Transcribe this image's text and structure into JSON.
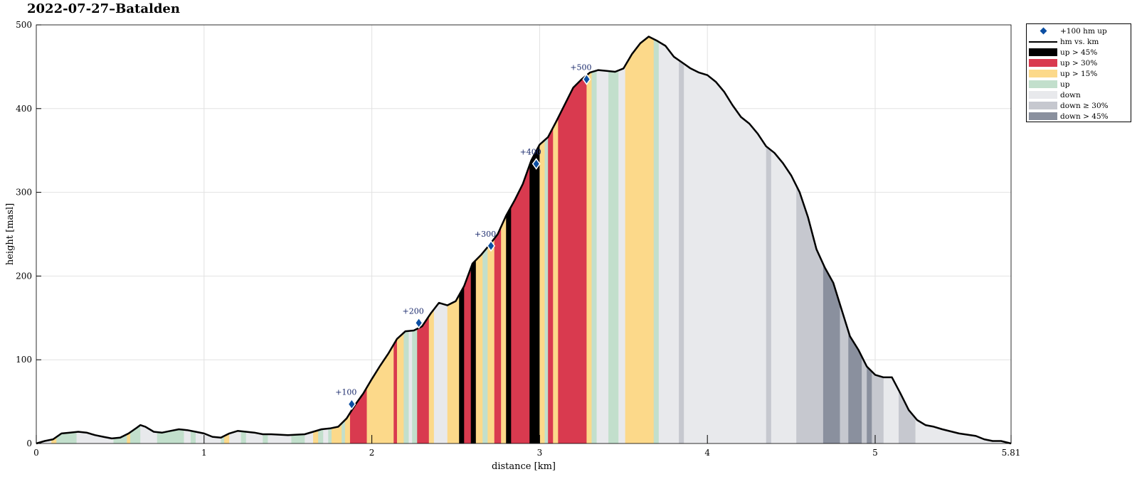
{
  "chart_data": {
    "type": "area",
    "title": "2022-07-27–Batalden",
    "xlabel": "distance [km]",
    "ylabel": "height [masl]",
    "xlim": [
      0,
      5.81
    ],
    "ylim": [
      0,
      500
    ],
    "xticks": [
      "0",
      "1",
      "2",
      "3",
      "4",
      "5",
      "5.81"
    ],
    "xtick_values": [
      0,
      1,
      2,
      3,
      4,
      5,
      5.81
    ],
    "yticks": [
      0,
      100,
      200,
      300,
      400,
      500
    ],
    "grid": true,
    "legend_position": "outside-top-right",
    "colors": {
      "up_gt_45": "#000000",
      "up_gt_30": "#d93a4f",
      "up_gt_15": "#fcd98a",
      "up": "#c2dfcc",
      "down": "#e8e9ec",
      "down_ge_30": "#c6c8cf",
      "down_gt_45": "#8a909e",
      "marker": "#0b4ea2",
      "line": "#000000"
    },
    "legend": [
      {
        "label": "+100 hm up",
        "kind": "diamond",
        "color": "#0b4ea2"
      },
      {
        "label": "hm vs. km",
        "kind": "line",
        "color": "#000000"
      },
      {
        "label": "up > 45%",
        "kind": "box",
        "color": "#000000"
      },
      {
        "label": "up > 30%",
        "kind": "box",
        "color": "#d93a4f"
      },
      {
        "label": "up > 15%",
        "kind": "box",
        "color": "#fcd98a"
      },
      {
        "label": "up",
        "kind": "box",
        "color": "#c2dfcc"
      },
      {
        "label": "down",
        "kind": "box",
        "color": "#e8e9ec"
      },
      {
        "label": "down ≥ 30%",
        "kind": "box",
        "color": "#c6c8cf"
      },
      {
        "label": "down > 45%",
        "kind": "box",
        "color": "#8a909e"
      }
    ],
    "profile": {
      "x": [
        0,
        0.05,
        0.1,
        0.15,
        0.2,
        0.25,
        0.3,
        0.35,
        0.4,
        0.45,
        0.5,
        0.55,
        0.6,
        0.62,
        0.65,
        0.7,
        0.75,
        0.8,
        0.85,
        0.9,
        0.95,
        1.0,
        1.05,
        1.1,
        1.15,
        1.2,
        1.25,
        1.3,
        1.35,
        1.4,
        1.5,
        1.6,
        1.65,
        1.7,
        1.75,
        1.8,
        1.85,
        1.9,
        1.95,
        2.0,
        2.05,
        2.1,
        2.15,
        2.2,
        2.25,
        2.3,
        2.35,
        2.4,
        2.45,
        2.5,
        2.55,
        2.6,
        2.65,
        2.7,
        2.75,
        2.8,
        2.85,
        2.9,
        2.95,
        3.0,
        3.05,
        3.1,
        3.15,
        3.2,
        3.25,
        3.3,
        3.35,
        3.4,
        3.45,
        3.5,
        3.55,
        3.6,
        3.65,
        3.7,
        3.75,
        3.8,
        3.85,
        3.9,
        3.95,
        4.0,
        4.05,
        4.1,
        4.15,
        4.2,
        4.25,
        4.3,
        4.35,
        4.4,
        4.45,
        4.5,
        4.55,
        4.6,
        4.65,
        4.7,
        4.75,
        4.8,
        4.85,
        4.9,
        4.95,
        5.0,
        5.05,
        5.1,
        5.15,
        5.2,
        5.25,
        5.3,
        5.35,
        5.4,
        5.5,
        5.6,
        5.65,
        5.7,
        5.75,
        5.81
      ],
      "y": [
        0,
        3,
        5,
        12,
        13,
        14,
        13,
        10,
        8,
        6,
        7,
        12,
        19,
        22,
        20,
        14,
        13,
        15,
        17,
        16,
        14,
        12,
        8,
        7,
        12,
        15,
        14,
        13,
        11,
        11,
        10,
        11,
        14,
        17,
        18,
        20,
        30,
        46,
        60,
        77,
        93,
        108,
        125,
        134,
        135,
        140,
        155,
        168,
        165,
        170,
        188,
        215,
        225,
        237,
        250,
        272,
        290,
        310,
        338,
        357,
        366,
        385,
        405,
        425,
        435,
        443,
        446,
        445,
        444,
        448,
        465,
        478,
        486,
        481,
        475,
        462,
        455,
        448,
        443,
        440,
        432,
        420,
        404,
        390,
        382,
        370,
        355,
        347,
        335,
        320,
        300,
        270,
        232,
        210,
        192,
        160,
        128,
        112,
        92,
        82,
        79,
        79,
        60,
        40,
        28,
        22,
        20,
        17,
        12,
        9,
        5,
        3,
        3,
        0
      ]
    },
    "markers": [
      {
        "label": "+100",
        "x": 1.88,
        "y": 47
      },
      {
        "label": "+200",
        "x": 2.28,
        "y": 144
      },
      {
        "label": "+300",
        "x": 2.71,
        "y": 236
      },
      {
        "label": "+400",
        "x": 2.98,
        "y": 334
      },
      {
        "label": "+500",
        "x": 3.28,
        "y": 435
      }
    ],
    "segments": [
      {
        "x0": 0.0,
        "x1": 0.09,
        "cat": "down"
      },
      {
        "x0": 0.09,
        "x1": 0.12,
        "cat": "up_gt_15"
      },
      {
        "x0": 0.12,
        "x1": 0.24,
        "cat": "up"
      },
      {
        "x0": 0.24,
        "x1": 0.46,
        "cat": "down"
      },
      {
        "x0": 0.46,
        "x1": 0.54,
        "cat": "up"
      },
      {
        "x0": 0.54,
        "x1": 0.56,
        "cat": "up_gt_15"
      },
      {
        "x0": 0.56,
        "x1": 0.62,
        "cat": "up"
      },
      {
        "x0": 0.62,
        "x1": 0.72,
        "cat": "down"
      },
      {
        "x0": 0.72,
        "x1": 0.88,
        "cat": "up"
      },
      {
        "x0": 0.88,
        "x1": 0.92,
        "cat": "down"
      },
      {
        "x0": 0.92,
        "x1": 0.95,
        "cat": "up"
      },
      {
        "x0": 0.95,
        "x1": 1.1,
        "cat": "down"
      },
      {
        "x0": 1.1,
        "x1": 1.12,
        "cat": "up"
      },
      {
        "x0": 1.12,
        "x1": 1.15,
        "cat": "up_gt_15"
      },
      {
        "x0": 1.15,
        "x1": 1.22,
        "cat": "down"
      },
      {
        "x0": 1.22,
        "x1": 1.25,
        "cat": "up"
      },
      {
        "x0": 1.25,
        "x1": 1.35,
        "cat": "down"
      },
      {
        "x0": 1.35,
        "x1": 1.38,
        "cat": "up"
      },
      {
        "x0": 1.38,
        "x1": 1.52,
        "cat": "down"
      },
      {
        "x0": 1.52,
        "x1": 1.6,
        "cat": "up"
      },
      {
        "x0": 1.6,
        "x1": 1.65,
        "cat": "down"
      },
      {
        "x0": 1.65,
        "x1": 1.68,
        "cat": "up_gt_15"
      },
      {
        "x0": 1.68,
        "x1": 1.71,
        "cat": "up"
      },
      {
        "x0": 1.71,
        "x1": 1.74,
        "cat": "down"
      },
      {
        "x0": 1.74,
        "x1": 1.76,
        "cat": "up"
      },
      {
        "x0": 1.76,
        "x1": 1.82,
        "cat": "up_gt_15"
      },
      {
        "x0": 1.82,
        "x1": 1.84,
        "cat": "up"
      },
      {
        "x0": 1.84,
        "x1": 1.87,
        "cat": "up_gt_15"
      },
      {
        "x0": 1.87,
        "x1": 1.97,
        "cat": "up_gt_30"
      },
      {
        "x0": 1.97,
        "x1": 2.13,
        "cat": "up_gt_15"
      },
      {
        "x0": 2.13,
        "x1": 2.15,
        "cat": "up_gt_30"
      },
      {
        "x0": 2.15,
        "x1": 2.19,
        "cat": "up_gt_15"
      },
      {
        "x0": 2.19,
        "x1": 2.22,
        "cat": "up"
      },
      {
        "x0": 2.22,
        "x1": 2.24,
        "cat": "down"
      },
      {
        "x0": 2.24,
        "x1": 2.27,
        "cat": "up"
      },
      {
        "x0": 2.27,
        "x1": 2.34,
        "cat": "up_gt_30"
      },
      {
        "x0": 2.34,
        "x1": 2.37,
        "cat": "up_gt_15"
      },
      {
        "x0": 2.37,
        "x1": 2.45,
        "cat": "down"
      },
      {
        "x0": 2.45,
        "x1": 2.52,
        "cat": "up_gt_15"
      },
      {
        "x0": 2.52,
        "x1": 2.55,
        "cat": "up_gt_45"
      },
      {
        "x0": 2.55,
        "x1": 2.59,
        "cat": "up_gt_30"
      },
      {
        "x0": 2.59,
        "x1": 2.62,
        "cat": "up_gt_45"
      },
      {
        "x0": 2.62,
        "x1": 2.66,
        "cat": "up_gt_15"
      },
      {
        "x0": 2.66,
        "x1": 2.69,
        "cat": "up"
      },
      {
        "x0": 2.69,
        "x1": 2.73,
        "cat": "up_gt_15"
      },
      {
        "x0": 2.73,
        "x1": 2.77,
        "cat": "up_gt_30"
      },
      {
        "x0": 2.77,
        "x1": 2.8,
        "cat": "up_gt_15"
      },
      {
        "x0": 2.8,
        "x1": 2.83,
        "cat": "up_gt_45"
      },
      {
        "x0": 2.83,
        "x1": 2.94,
        "cat": "up_gt_30"
      },
      {
        "x0": 2.94,
        "x1": 3.0,
        "cat": "up_gt_45"
      },
      {
        "x0": 3.0,
        "x1": 3.03,
        "cat": "up_gt_15"
      },
      {
        "x0": 3.03,
        "x1": 3.05,
        "cat": "up"
      },
      {
        "x0": 3.05,
        "x1": 3.08,
        "cat": "up_gt_30"
      },
      {
        "x0": 3.08,
        "x1": 3.11,
        "cat": "up_gt_15"
      },
      {
        "x0": 3.11,
        "x1": 3.28,
        "cat": "up_gt_30"
      },
      {
        "x0": 3.28,
        "x1": 3.31,
        "cat": "up_gt_15"
      },
      {
        "x0": 3.31,
        "x1": 3.34,
        "cat": "up"
      },
      {
        "x0": 3.34,
        "x1": 3.41,
        "cat": "down"
      },
      {
        "x0": 3.41,
        "x1": 3.47,
        "cat": "up"
      },
      {
        "x0": 3.47,
        "x1": 3.51,
        "cat": "down"
      },
      {
        "x0": 3.51,
        "x1": 3.68,
        "cat": "up_gt_15"
      },
      {
        "x0": 3.68,
        "x1": 3.71,
        "cat": "up"
      },
      {
        "x0": 3.71,
        "x1": 3.83,
        "cat": "down"
      },
      {
        "x0": 3.83,
        "x1": 3.86,
        "cat": "down_ge_30"
      },
      {
        "x0": 3.86,
        "x1": 4.35,
        "cat": "down"
      },
      {
        "x0": 4.35,
        "x1": 4.38,
        "cat": "down_ge_30"
      },
      {
        "x0": 4.38,
        "x1": 4.53,
        "cat": "down"
      },
      {
        "x0": 4.53,
        "x1": 4.69,
        "cat": "down_ge_30"
      },
      {
        "x0": 4.69,
        "x1": 4.79,
        "cat": "down_gt_45"
      },
      {
        "x0": 4.79,
        "x1": 4.84,
        "cat": "down_ge_30"
      },
      {
        "x0": 4.84,
        "x1": 4.92,
        "cat": "down_gt_45"
      },
      {
        "x0": 4.92,
        "x1": 4.95,
        "cat": "down_ge_30"
      },
      {
        "x0": 4.95,
        "x1": 4.98,
        "cat": "down_gt_45"
      },
      {
        "x0": 4.98,
        "x1": 5.05,
        "cat": "down_ge_30"
      },
      {
        "x0": 5.05,
        "x1": 5.14,
        "cat": "down"
      },
      {
        "x0": 5.14,
        "x1": 5.24,
        "cat": "down_ge_30"
      },
      {
        "x0": 5.24,
        "x1": 5.81,
        "cat": "down"
      }
    ]
  }
}
